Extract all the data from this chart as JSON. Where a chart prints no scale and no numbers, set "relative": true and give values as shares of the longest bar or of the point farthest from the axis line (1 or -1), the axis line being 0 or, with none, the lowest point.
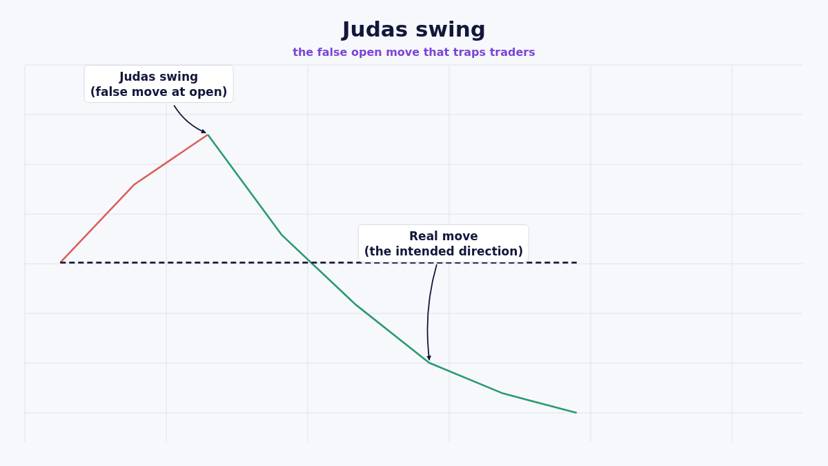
{
  "chart_data": {
    "type": "line",
    "title": "Judas swing",
    "subtitle": "the false open move that traps traders",
    "relative": true,
    "categories": [
      null,
      null,
      null,
      null,
      null,
      null,
      null,
      null
    ],
    "series": [
      {
        "color": "#d95f59",
        "values": [
          0.54,
          0.82,
          1,
          null,
          null,
          null,
          null,
          null
        ]
      },
      {
        "color": "#2a9a70",
        "values": [
          null,
          null,
          1,
          0.64,
          0.39,
          0.18,
          0.07,
          0
        ]
      },
      {
        "color": "#1c1c36",
        "line_style": "dashed",
        "values": [
          0.54,
          0.54,
          0.54,
          0.54,
          0.54,
          0.54,
          0.54,
          0.54
        ]
      }
    ],
    "grid": true,
    "annotations": [
      "Judas swing\n(false move at open)",
      "Real move\n(the intended direction)"
    ]
  }
}
